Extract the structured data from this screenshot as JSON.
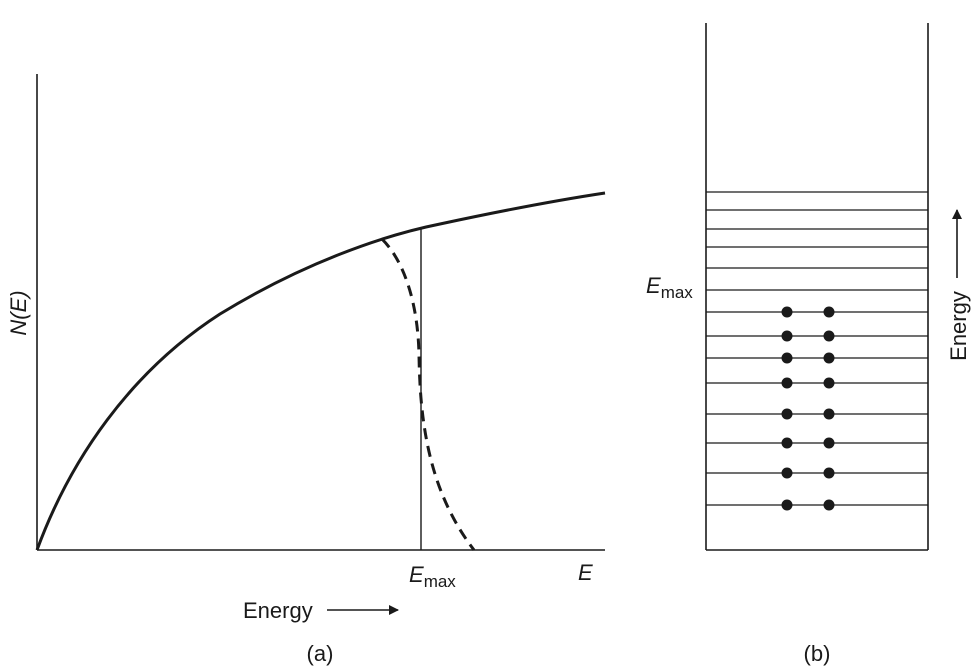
{
  "panel_a": {
    "y_axis_label": "N(E)",
    "x_axis_label": "Energy",
    "emax_main": "E",
    "emax_sub": "max",
    "x_end_label": "E",
    "caption": "(a)"
  },
  "panel_b": {
    "emax_main": "E",
    "emax_sub": "max",
    "energy_label": "Energy",
    "caption": "(b)",
    "levels": [
      {
        "filled": false
      },
      {
        "filled": false
      },
      {
        "filled": false
      },
      {
        "filled": false
      },
      {
        "filled": false
      },
      {
        "filled": false
      },
      {
        "filled": true
      },
      {
        "filled": true
      },
      {
        "filled": true
      },
      {
        "filled": true
      },
      {
        "filled": true
      },
      {
        "filled": true
      },
      {
        "filled": true
      },
      {
        "filled": true
      }
    ]
  }
}
